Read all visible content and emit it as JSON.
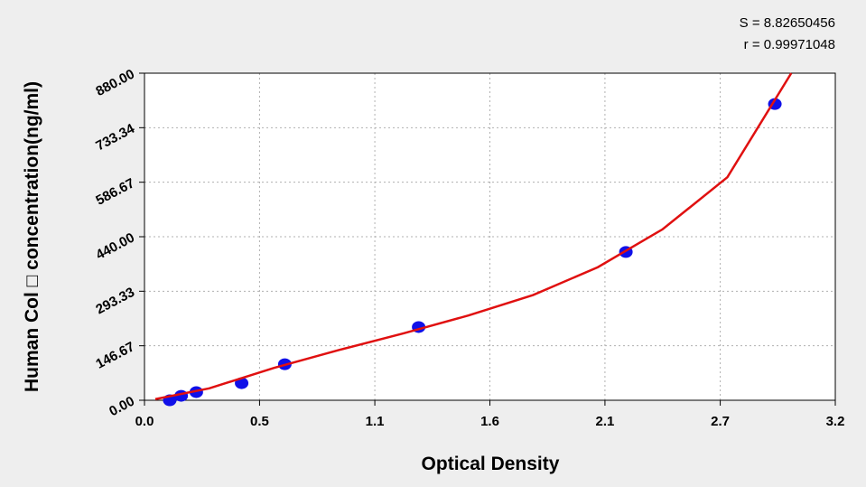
{
  "chart_data": {
    "type": "scatter",
    "annotations": [
      "S = 8.82650456",
      "r = 0.99971048"
    ],
    "xlabel": "Optical Density",
    "ylabel": "Human Col □  concentration(ng/ml)",
    "xlim": [
      0,
      3.2
    ],
    "ylim": [
      0,
      880
    ],
    "xticks": [
      {
        "value": 0,
        "label": "0.0"
      },
      {
        "value": 0.533,
        "label": "0.5"
      },
      {
        "value": 1.067,
        "label": "1.1"
      },
      {
        "value": 1.6,
        "label": "1.6"
      },
      {
        "value": 2.133,
        "label": "2.1"
      },
      {
        "value": 2.667,
        "label": "2.7"
      },
      {
        "value": 3.2,
        "label": "3.2"
      }
    ],
    "yticks": [
      {
        "value": 0,
        "label": "0.00"
      },
      146.67,
      293.33,
      {
        "value": 440,
        "label": "440.00"
      },
      586.67,
      733.34,
      {
        "value": 880,
        "label": "880.00"
      }
    ],
    "grid": true,
    "series": [
      {
        "mode": "markers",
        "color": "#1010e8",
        "x": [
          0.117,
          0.17,
          0.24,
          0.45,
          0.65,
          1.27,
          2.23,
          2.92
        ],
        "values": [
          0,
          12,
          22,
          46,
          97,
          197,
          399,
          797
        ]
      },
      {
        "mode": "line",
        "color": "#e01010",
        "x": [
          0.05,
          0.3,
          0.6,
          0.9,
          1.2,
          1.5,
          1.8,
          2.1,
          2.4,
          2.7,
          2.996
        ],
        "values": [
          3,
          32,
          87,
          135,
          180,
          228,
          283,
          358,
          460,
          600,
          880
        ]
      }
    ]
  }
}
